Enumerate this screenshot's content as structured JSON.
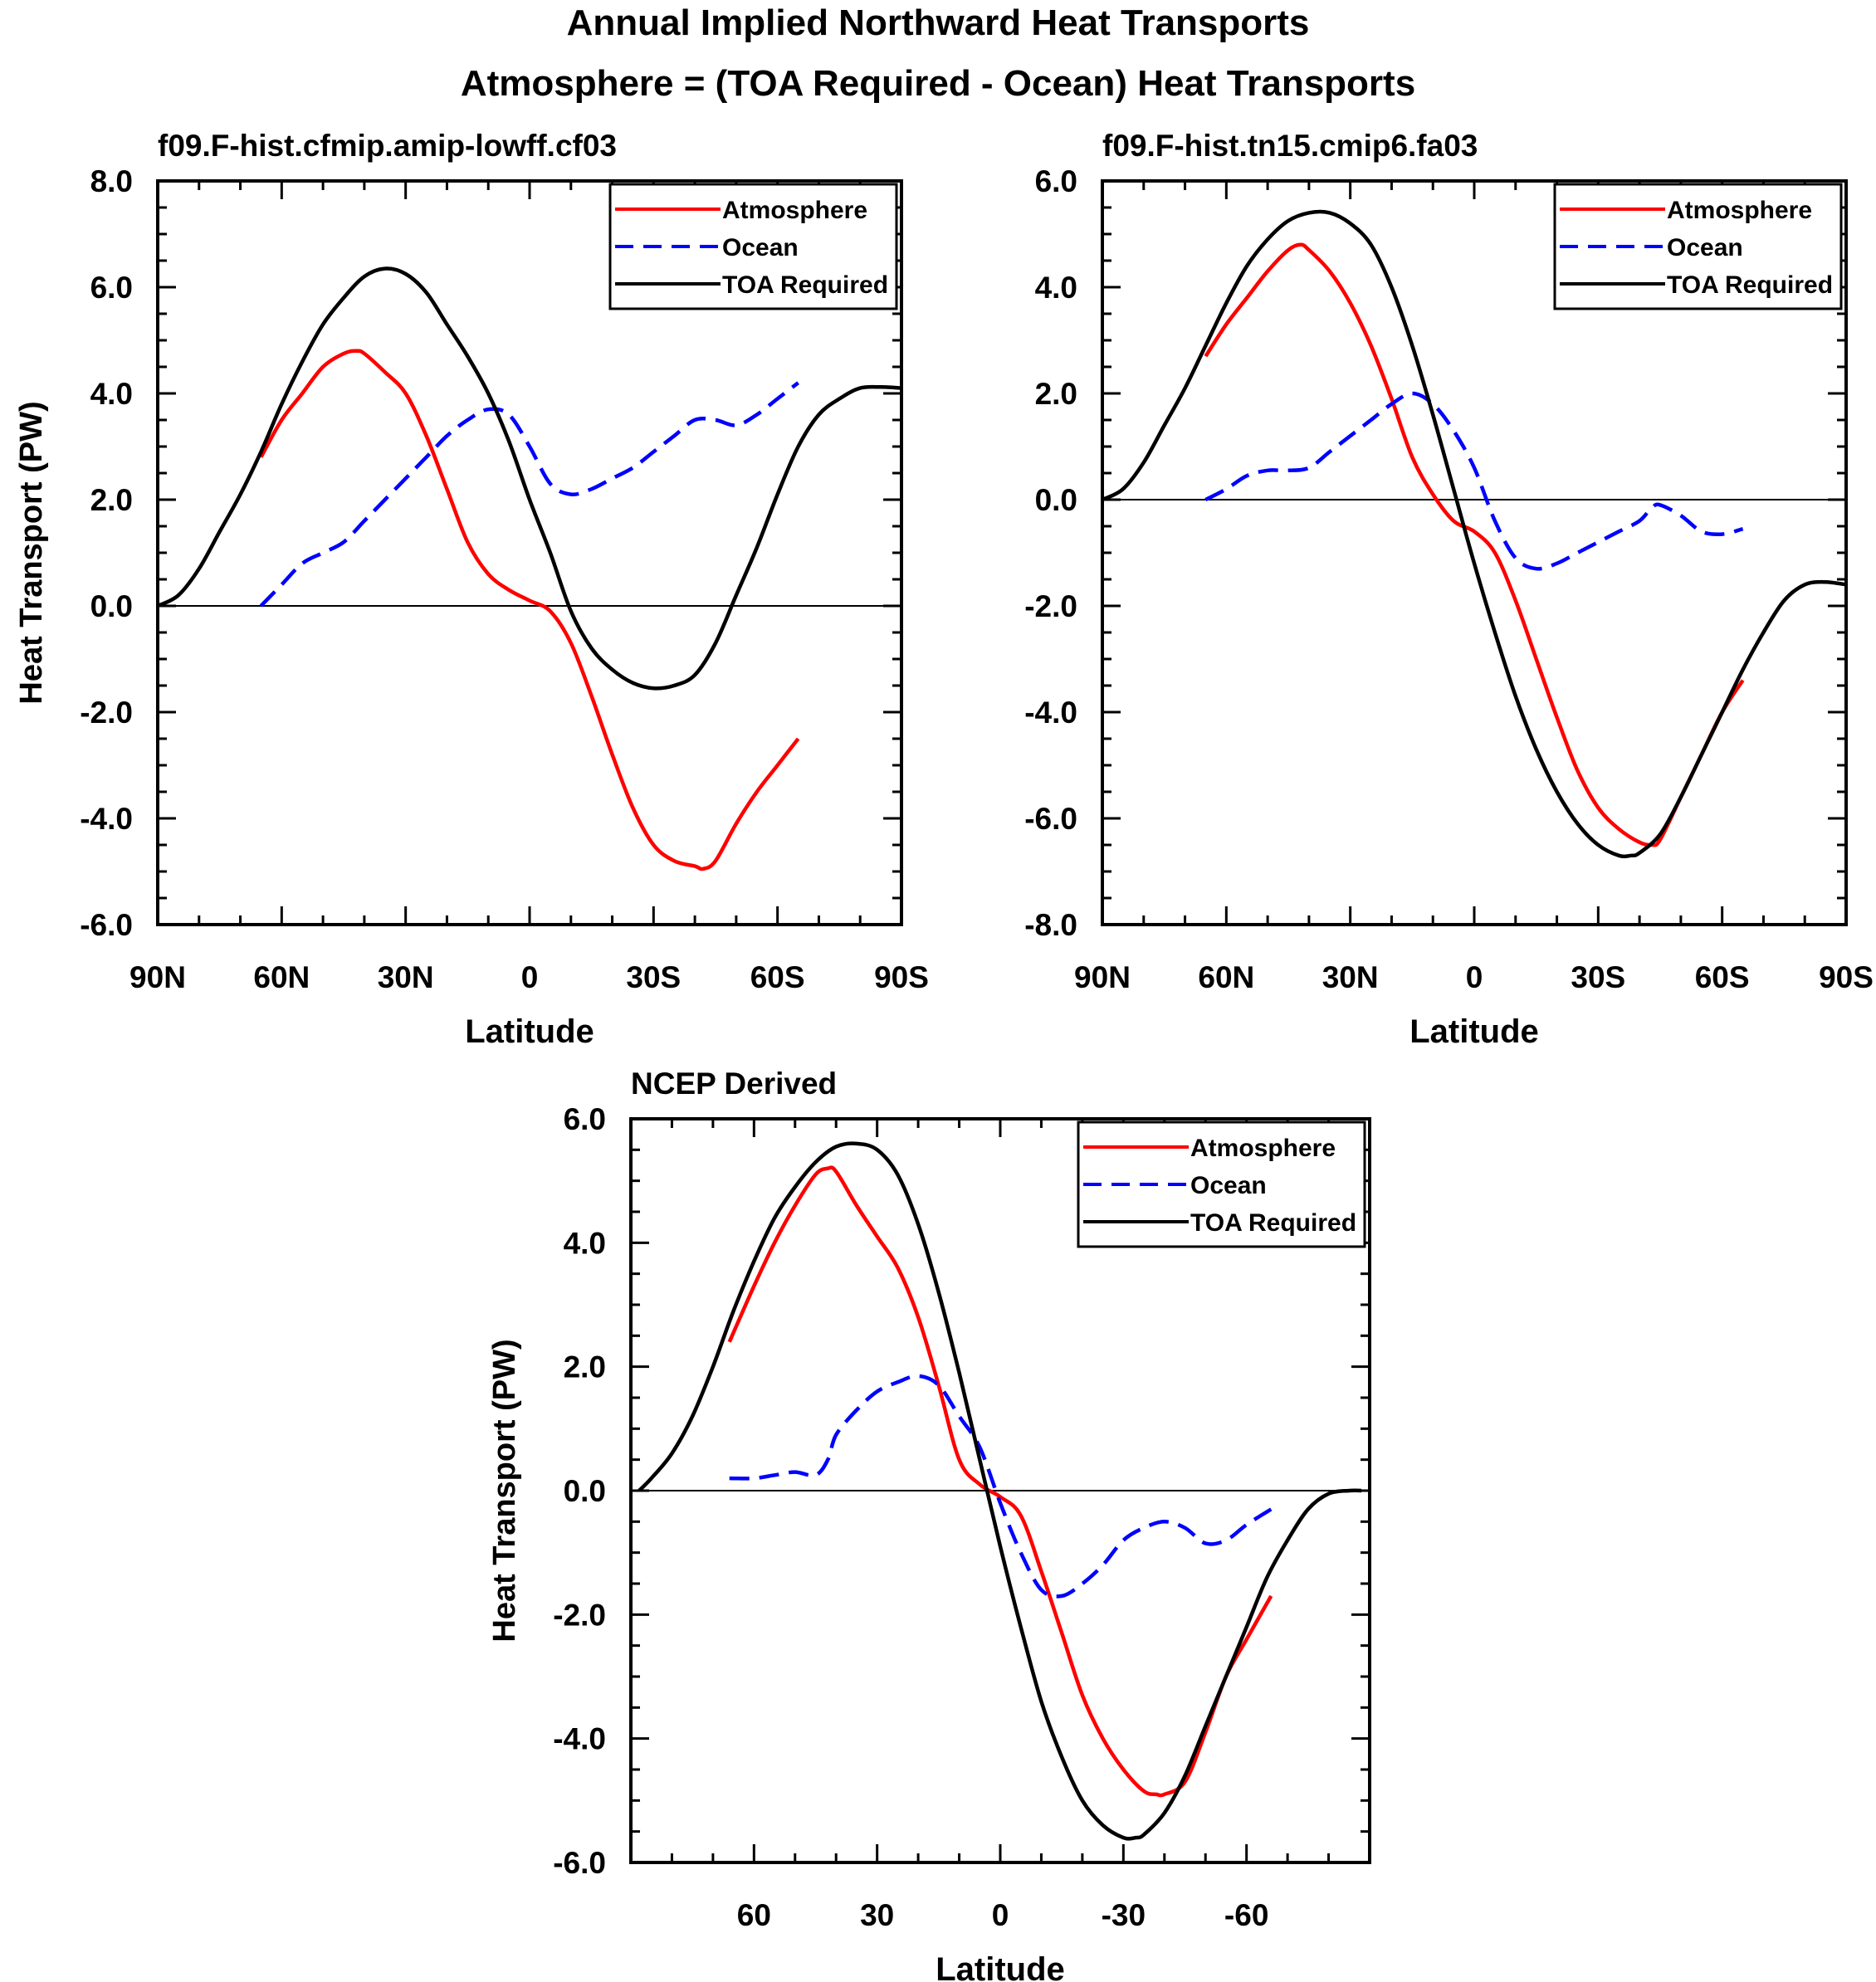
{
  "figure": {
    "title_line1": "Annual Implied Northward Heat Transports",
    "title_line2": "Atmosphere = (TOA Required - Ocean) Heat Transports"
  },
  "colors": {
    "atmosphere": "#ff0000",
    "ocean": "#0000ff",
    "toa": "#000000"
  },
  "chart_data": [
    {
      "type": "line",
      "title": "f09.F-hist.cfmip.amip-lowff.cf03",
      "xlabel": "Latitude",
      "ylabel": "Heat Transport (PW)",
      "xlim": [
        90,
        -90
      ],
      "ylim": [
        -6,
        8
      ],
      "xticks": [
        90,
        60,
        30,
        0,
        -30,
        -60,
        -90
      ],
      "xticklabels": [
        "90N",
        "60N",
        "30N",
        "0",
        "30S",
        "60S",
        "90S"
      ],
      "yticks": [
        -6,
        -4,
        -2,
        0,
        2,
        4,
        6,
        8
      ],
      "yticklabels": [
        "-6.0",
        "-4.0",
        "-2.0",
        "0.0",
        "2.0",
        "4.0",
        "6.0",
        "8.0"
      ],
      "zero_line": true,
      "legend_position": "top-right",
      "series": [
        {
          "name": "Atmosphere",
          "key": "atmosphere",
          "dashed": false,
          "x": [
            65,
            60,
            55,
            50,
            45,
            42,
            40,
            35,
            30,
            25,
            20,
            15,
            10,
            5,
            0,
            -5,
            -10,
            -15,
            -20,
            -25,
            -30,
            -35,
            -40,
            -42,
            -45,
            -50,
            -55,
            -60,
            -65
          ],
          "y": [
            2.8,
            3.5,
            4.0,
            4.5,
            4.75,
            4.8,
            4.75,
            4.4,
            4.0,
            3.2,
            2.2,
            1.2,
            0.6,
            0.3,
            0.1,
            -0.1,
            -0.7,
            -1.7,
            -2.8,
            -3.8,
            -4.5,
            -4.8,
            -4.9,
            -4.95,
            -4.8,
            -4.1,
            -3.5,
            -3.0,
            -2.5
          ]
        },
        {
          "name": "Ocean",
          "key": "ocean",
          "dashed": false,
          "x": [
            65,
            60,
            55,
            50,
            45,
            40,
            35,
            30,
            25,
            20,
            15,
            10,
            5,
            0,
            -5,
            -10,
            -15,
            -20,
            -25,
            -30,
            -35,
            -40,
            -45,
            -50,
            -55,
            -60,
            -65
          ],
          "y": [
            0.0,
            0.4,
            0.8,
            1.0,
            1.2,
            1.6,
            2.0,
            2.4,
            2.8,
            3.2,
            3.5,
            3.7,
            3.6,
            3.0,
            2.3,
            2.1,
            2.2,
            2.4,
            2.6,
            2.9,
            3.2,
            3.5,
            3.5,
            3.4,
            3.6,
            3.9,
            4.2
          ]
        },
        {
          "name": "TOA Required",
          "key": "toa",
          "dashed": false,
          "x": [
            90,
            85,
            80,
            75,
            70,
            65,
            60,
            55,
            50,
            45,
            40,
            35,
            30,
            25,
            20,
            15,
            10,
            5,
            0,
            -5,
            -10,
            -15,
            -20,
            -25,
            -30,
            -35,
            -40,
            -45,
            -50,
            -55,
            -60,
            -65,
            -70,
            -75,
            -80,
            -85,
            -90
          ],
          "y": [
            0.0,
            0.2,
            0.7,
            1.4,
            2.1,
            2.9,
            3.8,
            4.6,
            5.3,
            5.8,
            6.2,
            6.35,
            6.25,
            5.9,
            5.3,
            4.7,
            4.0,
            3.1,
            2.0,
            1.0,
            -0.1,
            -0.8,
            -1.2,
            -1.45,
            -1.55,
            -1.5,
            -1.3,
            -0.7,
            0.2,
            1.1,
            2.1,
            3.0,
            3.6,
            3.9,
            4.1,
            4.12,
            4.1
          ]
        }
      ]
    },
    {
      "type": "line",
      "title": "f09.F-hist.tn15.cmip6.fa03",
      "xlabel": "Latitude",
      "ylabel": "",
      "xlim": [
        90,
        -90
      ],
      "ylim": [
        -8,
        6
      ],
      "xticks": [
        90,
        60,
        30,
        0,
        -30,
        -60,
        -90
      ],
      "xticklabels": [
        "90N",
        "60N",
        "30N",
        "0",
        "30S",
        "60S",
        "90S"
      ],
      "yticks": [
        -8,
        -6,
        -4,
        -2,
        0,
        2,
        4,
        6
      ],
      "yticklabels": [
        "-8.0",
        "-6.0",
        "-4.0",
        "-2.0",
        "0.0",
        "2.0",
        "4.0",
        "6.0"
      ],
      "zero_line": true,
      "legend_position": "top-right",
      "series": [
        {
          "name": "Atmosphere",
          "key": "atmosphere",
          "dashed": false,
          "x": [
            65,
            60,
            55,
            50,
            45,
            42,
            40,
            35,
            30,
            25,
            20,
            15,
            10,
            5,
            0,
            -5,
            -10,
            -15,
            -20,
            -25,
            -30,
            -35,
            -40,
            -43,
            -45,
            -50,
            -55,
            -60,
            -65
          ],
          "y": [
            2.7,
            3.3,
            3.8,
            4.3,
            4.7,
            4.8,
            4.7,
            4.3,
            3.7,
            2.9,
            1.9,
            0.8,
            0.1,
            -0.4,
            -0.6,
            -1.0,
            -1.9,
            -3.0,
            -4.1,
            -5.1,
            -5.8,
            -6.2,
            -6.45,
            -6.5,
            -6.4,
            -5.6,
            -4.8,
            -4.0,
            -3.4
          ]
        },
        {
          "name": "Ocean",
          "key": "ocean",
          "dashed": false,
          "x": [
            65,
            60,
            55,
            50,
            45,
            40,
            35,
            30,
            25,
            20,
            15,
            10,
            5,
            0,
            -5,
            -10,
            -15,
            -20,
            -25,
            -30,
            -35,
            -40,
            -43,
            -45,
            -50,
            -55,
            -60,
            -65
          ],
          "y": [
            0.0,
            0.2,
            0.45,
            0.55,
            0.55,
            0.6,
            0.9,
            1.2,
            1.5,
            1.8,
            2.0,
            1.8,
            1.3,
            0.6,
            -0.4,
            -1.1,
            -1.3,
            -1.2,
            -1.0,
            -0.8,
            -0.6,
            -0.4,
            -0.15,
            -0.1,
            -0.3,
            -0.6,
            -0.65,
            -0.55
          ]
        },
        {
          "name": "TOA Required",
          "key": "toa",
          "dashed": false,
          "x": [
            90,
            85,
            80,
            75,
            70,
            65,
            60,
            55,
            50,
            45,
            40,
            35,
            30,
            25,
            20,
            15,
            10,
            5,
            0,
            -5,
            -10,
            -15,
            -20,
            -25,
            -30,
            -35,
            -38,
            -40,
            -45,
            -50,
            -55,
            -60,
            -65,
            -70,
            -75,
            -80,
            -85,
            -90
          ],
          "y": [
            0.0,
            0.2,
            0.7,
            1.4,
            2.1,
            2.9,
            3.7,
            4.4,
            4.9,
            5.25,
            5.4,
            5.4,
            5.2,
            4.8,
            4.0,
            2.9,
            1.6,
            0.2,
            -1.2,
            -2.5,
            -3.7,
            -4.7,
            -5.5,
            -6.1,
            -6.5,
            -6.7,
            -6.7,
            -6.65,
            -6.3,
            -5.6,
            -4.8,
            -4.0,
            -3.2,
            -2.5,
            -1.9,
            -1.6,
            -1.55,
            -1.6
          ]
        }
      ]
    },
    {
      "type": "line",
      "title": "NCEP Derived",
      "xlabel": "Latitude",
      "ylabel": "Heat Transport (PW)",
      "xlim": [
        90,
        -90
      ],
      "ylim": [
        -6,
        6
      ],
      "xticks": [
        60,
        30,
        0,
        -30,
        -60
      ],
      "xticklabels": [
        "60",
        "30",
        "0",
        "-30",
        "-60"
      ],
      "yticks": [
        -6,
        -4,
        -2,
        0,
        2,
        4,
        6
      ],
      "yticklabels": [
        "-6.0",
        "-4.0",
        "-2.0",
        "0.0",
        "2.0",
        "4.0",
        "6.0"
      ],
      "zero_line": true,
      "legend_position": "top-right",
      "series": [
        {
          "name": "Atmosphere",
          "key": "atmosphere",
          "dashed": false,
          "x": [
            66,
            60,
            55,
            50,
            45,
            42,
            40,
            35,
            30,
            25,
            20,
            15,
            10,
            5,
            0,
            -5,
            -10,
            -15,
            -20,
            -25,
            -30,
            -35,
            -38,
            -40,
            -45,
            -50,
            -55,
            -60,
            -66
          ],
          "y": [
            2.4,
            3.3,
            4.0,
            4.6,
            5.1,
            5.2,
            5.15,
            4.6,
            4.1,
            3.6,
            2.8,
            1.7,
            0.5,
            0.1,
            -0.1,
            -0.4,
            -1.3,
            -2.3,
            -3.3,
            -4.0,
            -4.5,
            -4.85,
            -4.9,
            -4.9,
            -4.7,
            -3.9,
            -3.0,
            -2.4,
            -1.7
          ]
        },
        {
          "name": "Ocean",
          "key": "ocean",
          "dashed": false,
          "x": [
            66,
            60,
            55,
            50,
            45,
            42,
            40,
            35,
            30,
            25,
            20,
            15,
            10,
            5,
            0,
            -5,
            -10,
            -15,
            -20,
            -25,
            -30,
            -35,
            -40,
            -45,
            -50,
            -55,
            -60,
            -66
          ],
          "y": [
            0.2,
            0.2,
            0.25,
            0.3,
            0.25,
            0.5,
            0.9,
            1.3,
            1.6,
            1.75,
            1.85,
            1.7,
            1.2,
            0.7,
            -0.2,
            -1.0,
            -1.6,
            -1.7,
            -1.5,
            -1.2,
            -0.8,
            -0.6,
            -0.5,
            -0.6,
            -0.85,
            -0.8,
            -0.55,
            -0.3
          ]
        },
        {
          "name": "TOA Required",
          "key": "toa",
          "dashed": false,
          "x": [
            88,
            85,
            80,
            75,
            70,
            65,
            60,
            55,
            50,
            45,
            40,
            35,
            30,
            25,
            20,
            15,
            10,
            5,
            0,
            -5,
            -10,
            -15,
            -20,
            -25,
            -30,
            -33,
            -35,
            -40,
            -45,
            -50,
            -55,
            -60,
            -65,
            -70,
            -75,
            -80,
            -85,
            -88
          ],
          "y": [
            0.0,
            0.2,
            0.6,
            1.2,
            2.0,
            2.9,
            3.7,
            4.4,
            4.9,
            5.3,
            5.55,
            5.6,
            5.5,
            5.1,
            4.3,
            3.2,
            1.9,
            0.5,
            -0.9,
            -2.2,
            -3.4,
            -4.3,
            -5.0,
            -5.4,
            -5.6,
            -5.6,
            -5.55,
            -5.2,
            -4.6,
            -3.8,
            -3.0,
            -2.2,
            -1.4,
            -0.8,
            -0.3,
            -0.05,
            0.0,
            0.0
          ]
        }
      ]
    }
  ]
}
